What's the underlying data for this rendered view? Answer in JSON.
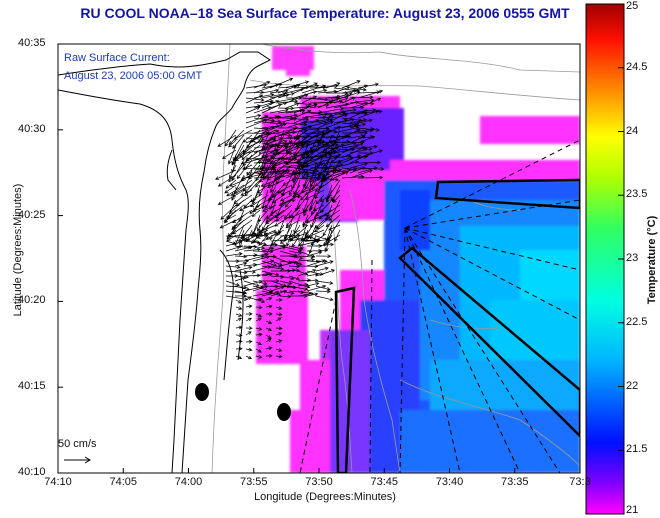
{
  "title": "RU COOL  NOAA–18  Sea Surface Temperature:  August 23, 2006 0555 GMT",
  "current_info": {
    "line1": "Raw Surface Current:",
    "line2": "August 23, 2006 05:00 GMT"
  },
  "map": {
    "x_axis_label": "Longitude (Degrees:Minutes)",
    "y_axis_label": "Latitude (Degrees:Minutes)",
    "x_ticks": [
      "74:10",
      "74:05",
      "74:00",
      "73:55",
      "73:50",
      "73:45",
      "73:40",
      "73:35",
      "73:3"
    ],
    "y_ticks": [
      "40:35",
      "40:30",
      "40:25",
      "40:20",
      "40:15",
      "40:10"
    ],
    "scale_label": "50 cm/s"
  },
  "colorbar": {
    "title": "Temperature (°C)",
    "min": 21,
    "max": 25,
    "ticks": [
      "25",
      "24.5",
      "24",
      "23.5",
      "23",
      "22.5",
      "22",
      "21.5",
      "21"
    ]
  },
  "colors": {
    "title_text": "#1414a0",
    "info_text": "#1e3cb4",
    "sst_cool": "#1e5aff",
    "sst_cold_edge": "#ff28ff",
    "coast": "#000000"
  }
}
